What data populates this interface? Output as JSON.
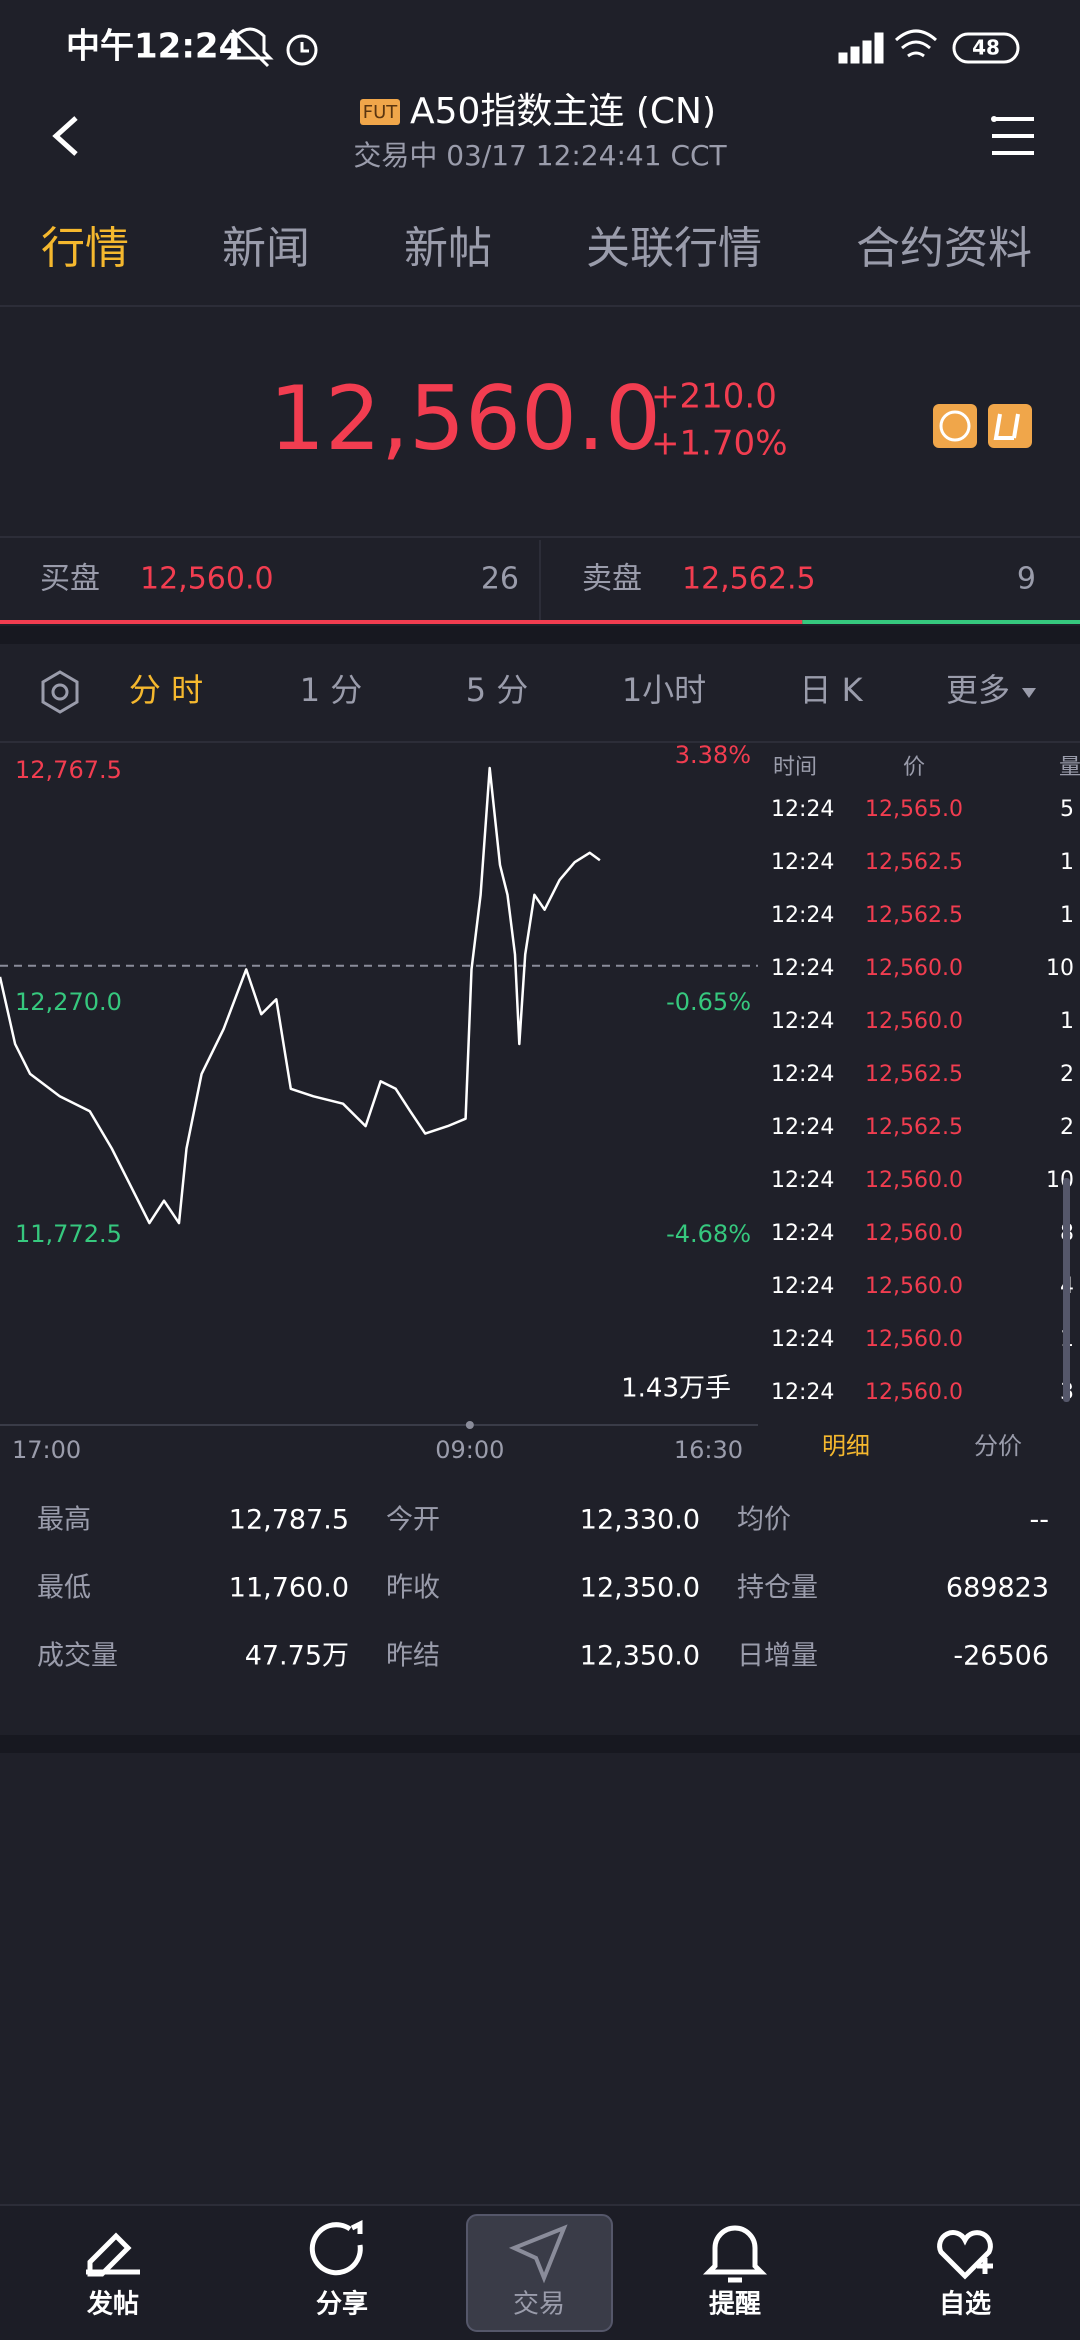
{
  "status_bar": {
    "time": "中午12:24",
    "battery": "48"
  },
  "header": {
    "badge": "FUT",
    "title": "A50指数主连 (CN)",
    "subtitle": "交易中 03/17 12:24:41 CCT"
  },
  "tabs": [
    "行情",
    "新闻",
    "新帖",
    "关联行情",
    "合约资料"
  ],
  "quote": {
    "price": "12,560.0",
    "change": "+210.0",
    "change_pct": "+1.70%"
  },
  "order_book": {
    "bid_label": "买盘",
    "bid_price": "12,560.0",
    "bid_size": 26,
    "ask_label": "卖盘",
    "ask_price": "12,562.5",
    "ask_size": 9
  },
  "periods": [
    "分 时",
    "1 分",
    "5 分",
    "1小时",
    "日 K",
    "更多"
  ],
  "chart_data": {
    "type": "line",
    "x": [
      0,
      28,
      56,
      111,
      167,
      208,
      250,
      278,
      305,
      333,
      347,
      375,
      416,
      458,
      486,
      514,
      541,
      583,
      638,
      680,
      708,
      736,
      763,
      791,
      833,
      866,
      877,
      894,
      911,
      930,
      944,
      958,
      966,
      977,
      994,
      1013,
      1041,
      1069,
      1097,
      1116
    ],
    "series": [
      {
        "color": "#ffffff",
        "values": [
          12326,
          12182,
          12118,
          12070,
          12038,
          11958,
          11862,
          11798,
          11846,
          11798,
          11958,
          12118,
          12214,
          12342,
          12246,
          12278,
          12086,
          12070,
          12054,
          12006,
          12102,
          12086,
          12038,
          11990,
          12006,
          12022,
          12342,
          12502,
          12774,
          12566,
          12502,
          12374,
          12182,
          12374,
          12502,
          12470,
          12534,
          12572,
          12592,
          12576
        ]
      }
    ],
    "xlim": [
      0,
      1410
    ],
    "xticks": [
      {
        "value": 0,
        "label": "17:00"
      },
      {
        "value": 874,
        "label": "09:00"
      },
      {
        "value": 1410,
        "label": "16:30"
      }
    ],
    "ylim": [
      11772.5,
      12767.5
    ],
    "yticks": [
      {
        "value": 11772.5,
        "label": "11,772.5"
      },
      {
        "value": 12270,
        "label": "12,270.0"
      },
      {
        "value": 12767.5,
        "label": "12,767.5"
      }
    ],
    "pct_labels": [
      "-4.68%",
      "-0.65%",
      "3.38%"
    ],
    "volume_label": "1.43万手"
  },
  "trades": {
    "headers": [
      "时间",
      "价",
      "量"
    ],
    "rows": [
      [
        "12:24",
        "12,565.0",
        "5"
      ],
      [
        "12:24",
        "12,562.5",
        "1"
      ],
      [
        "12:24",
        "12,562.5",
        "1"
      ],
      [
        "12:24",
        "12,560.0",
        "10"
      ],
      [
        "12:24",
        "12,560.0",
        "1"
      ],
      [
        "12:24",
        "12,562.5",
        "2"
      ],
      [
        "12:24",
        "12,562.5",
        "2"
      ],
      [
        "12:24",
        "12,560.0",
        "10"
      ],
      [
        "12:24",
        "12,560.0",
        "8"
      ],
      [
        "12:24",
        "12,560.0",
        "4"
      ],
      [
        "12:24",
        "12,560.0",
        "1"
      ],
      [
        "12:24",
        "12,560.0",
        "3"
      ]
    ]
  },
  "detail_tabs": [
    "明细",
    "分价"
  ],
  "stats": [
    {
      "label": "最高",
      "value": "12,787.5"
    },
    {
      "label": "今开",
      "value": "12,330.0"
    },
    {
      "label": "均价",
      "value": "--"
    },
    {
      "label": "最低",
      "value": "11,760.0"
    },
    {
      "label": "昨收",
      "value": 12350,
      "value_label": "12,350.0"
    },
    {
      "label": "持仓量",
      "value": "689823"
    },
    {
      "label": "成交量",
      "value": "47.75万"
    },
    {
      "label": "昨结",
      "value": "12,350.0"
    },
    {
      "label": "日增量",
      "value": "-26506"
    }
  ],
  "nav": [
    "发帖",
    "分享",
    "交易",
    "提醒",
    "自选"
  ]
}
